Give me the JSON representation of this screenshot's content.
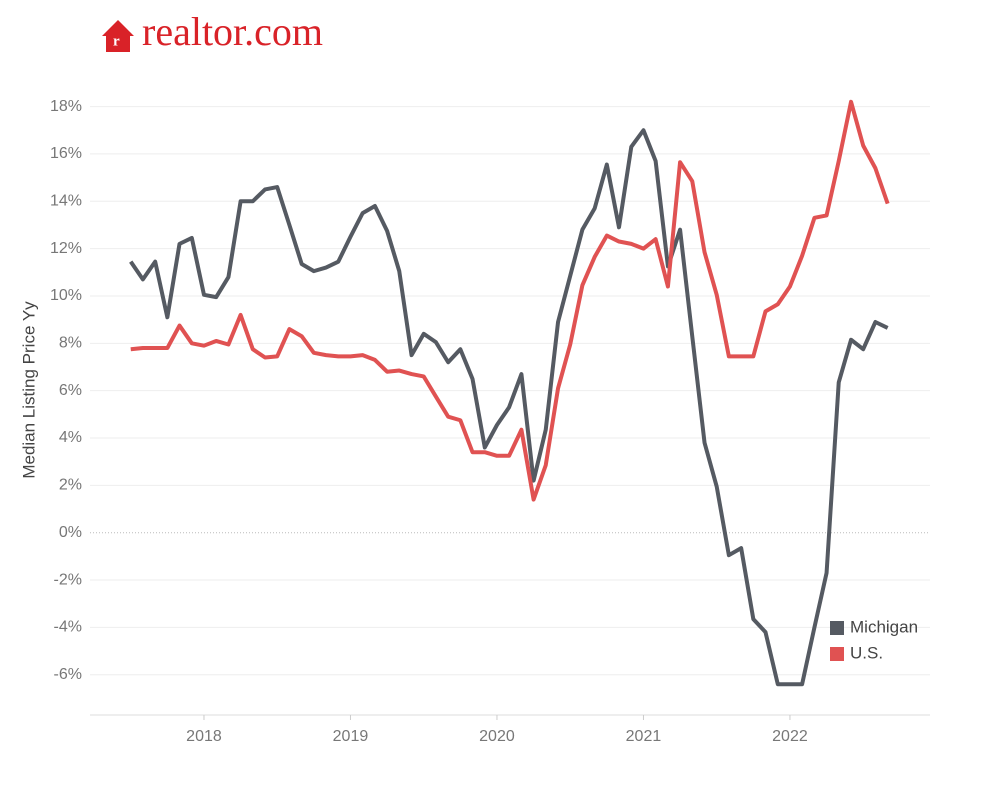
{
  "logo": "realtor.com",
  "chart_data": {
    "type": "line",
    "y_label": "Median Listing Price Yy",
    "x": [
      2017.5,
      2017.583,
      2017.667,
      2017.75,
      2017.833,
      2017.917,
      2018,
      2018.083,
      2018.167,
      2018.25,
      2018.333,
      2018.417,
      2018.5,
      2018.583,
      2018.667,
      2018.75,
      2018.833,
      2018.917,
      2019,
      2019.083,
      2019.167,
      2019.25,
      2019.333,
      2019.417,
      2019.5,
      2019.583,
      2019.667,
      2019.75,
      2019.833,
      2019.917,
      2020,
      2020.083,
      2020.167,
      2020.25,
      2020.333,
      2020.417,
      2020.5,
      2020.583,
      2020.667,
      2020.75,
      2020.833,
      2020.917,
      2021,
      2021.083,
      2021.167,
      2021.25,
      2021.333,
      2021.417,
      2021.5,
      2021.583,
      2021.667,
      2021.75,
      2021.833,
      2021.917,
      2022,
      2022.083,
      2022.167,
      2022.25,
      2022.333,
      2022.417,
      2022.5,
      2022.583,
      2022.667
    ],
    "series": [
      {
        "name": "Michigan",
        "color": "#555a62",
        "values": [
          11.45,
          10.7,
          11.45,
          9.1,
          12.2,
          12.45,
          10.05,
          9.95,
          10.8,
          14.0,
          14.0,
          14.5,
          14.6,
          13.0,
          11.35,
          11.05,
          11.2,
          11.45,
          12.5,
          13.5,
          13.8,
          12.75,
          11.05,
          7.5,
          8.4,
          8.05,
          7.2,
          7.75,
          6.5,
          3.6,
          4.55,
          5.3,
          6.7,
          2.2,
          4.35,
          8.9,
          10.85,
          12.8,
          13.7,
          15.55,
          12.9,
          16.3,
          17.0,
          15.7,
          11.25,
          12.8,
          8.3,
          3.8,
          1.95,
          -0.95,
          -0.65,
          -3.65,
          -4.2,
          -6.4,
          -6.4,
          -6.4,
          -4.0,
          -1.7,
          6.35,
          8.15,
          7.75,
          8.9,
          8.65
        ]
      },
      {
        "name": "U.S.",
        "color": "#e05252",
        "values": [
          7.75,
          7.8,
          7.8,
          7.8,
          8.75,
          8.0,
          7.9,
          8.1,
          7.95,
          9.2,
          7.75,
          7.4,
          7.45,
          8.6,
          8.3,
          7.6,
          7.5,
          7.45,
          7.45,
          7.5,
          7.3,
          6.8,
          6.85,
          6.7,
          6.6,
          5.75,
          4.9,
          4.75,
          3.4,
          3.4,
          3.25,
          3.25,
          4.35,
          1.4,
          2.85,
          6.1,
          7.95,
          10.45,
          11.65,
          12.55,
          12.3,
          12.2,
          12.0,
          12.4,
          10.4,
          15.65,
          14.85,
          11.85,
          10.05,
          7.45,
          7.45,
          7.45,
          9.35,
          9.65,
          10.4,
          11.7,
          13.3,
          13.4,
          15.7,
          18.2,
          16.35,
          15.4,
          13.9
        ]
      }
    ],
    "xlim": [
      2017.222,
      2022.956
    ],
    "xticks": [
      2018,
      2019,
      2020,
      2021,
      2022
    ],
    "ylim": [
      -7.7,
      18.7
    ],
    "yticks": [
      {
        "value": -6,
        "label": "-6%"
      },
      {
        "value": -4,
        "label": "-4%"
      },
      {
        "value": -2,
        "label": "-2%"
      },
      {
        "value": 0,
        "label": "0%"
      },
      {
        "value": 2,
        "label": "2%"
      },
      {
        "value": 4,
        "label": "4%"
      },
      {
        "value": 6,
        "label": "6%"
      },
      {
        "value": 8,
        "label": "8%"
      },
      {
        "value": 10,
        "label": "10%"
      },
      {
        "value": 12,
        "label": "12%"
      },
      {
        "value": 14,
        "label": "14%"
      },
      {
        "value": 16,
        "label": "16%"
      },
      {
        "value": 18,
        "label": "18%"
      }
    ],
    "grid": true,
    "legend": "bottom-right"
  }
}
